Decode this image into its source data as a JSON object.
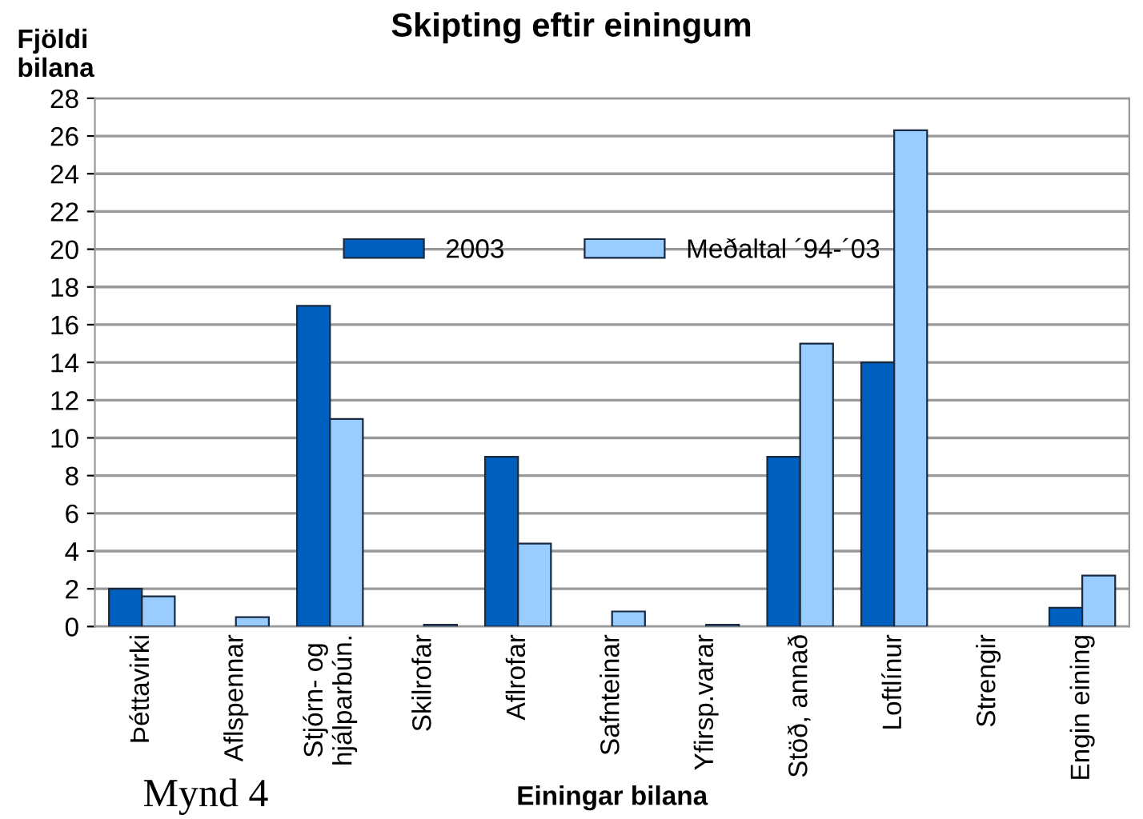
{
  "chart_data": {
    "type": "bar",
    "title": "Skipting eftir einingum",
    "ylabel": "Fjöldi\nbilana",
    "xlabel": "Einingar bilana",
    "categories": [
      "Þéttavirki",
      "Aflspennar",
      "Stjórn- og\nhjálparbún.",
      "Skilrofar",
      "Aflrofar",
      "Safnteinar",
      "Yfirsp.varar",
      "Stöð, annað",
      "Loftlínur",
      "Strengir",
      "Engin eining"
    ],
    "series": [
      {
        "name": "2003",
        "color": "#0060c0",
        "values": [
          2,
          0,
          17,
          0,
          9,
          0,
          0,
          9,
          14,
          0,
          1
        ]
      },
      {
        "name": "Meðaltal ´94-´03",
        "color": "#99ccff",
        "values": [
          1.6,
          0.5,
          11,
          0.1,
          4.4,
          0.8,
          0.1,
          15,
          26.3,
          0,
          2.7
        ]
      }
    ],
    "ylim": [
      0,
      28
    ],
    "yticks": [
      0,
      2,
      4,
      6,
      8,
      10,
      12,
      14,
      16,
      18,
      20,
      22,
      24,
      26,
      28
    ],
    "grid": "y",
    "legend": "top",
    "annotations": [
      "Mynd 4"
    ]
  }
}
